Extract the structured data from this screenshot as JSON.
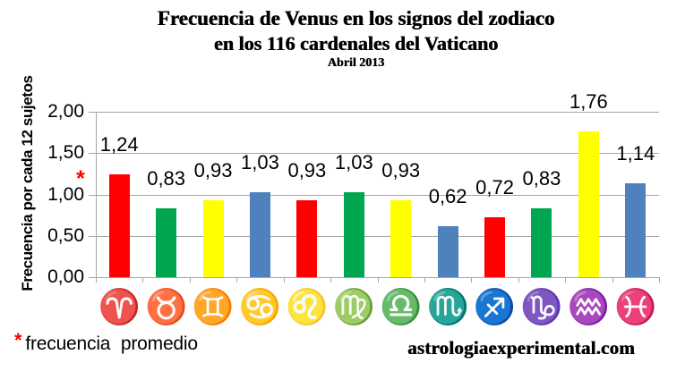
{
  "header": {
    "title_line1": "Frecuencia de Venus en los signos del zodiaco",
    "title_line2": "en los 116 cardenales del Vaticano",
    "subtitle": "Abril 2013"
  },
  "chart_data": {
    "type": "bar",
    "title": "Frecuencia de Venus en los signos del zodiaco en los 116 cardenales del Vaticano - Abril 2013",
    "ylabel": "Frecuencia por cada 12 sujetos",
    "xlabel": "",
    "ylim": [
      0,
      2
    ],
    "ytick_step": 0.5,
    "ytick_labels": [
      "0,00",
      "0,50",
      "1,00",
      "1,50",
      "2,00"
    ],
    "grid": true,
    "legend": false,
    "categories": [
      "Aries",
      "Tauro",
      "Géminis",
      "Cáncer",
      "Leo",
      "Virgo",
      "Libra",
      "Escorpio",
      "Sagitario",
      "Capricornio",
      "Acuario",
      "Piscis"
    ],
    "category_slugs": [
      "aries",
      "tauro",
      "geminis",
      "cancer",
      "leo",
      "virgo",
      "libra",
      "escorpio",
      "sagitario",
      "capricornio",
      "acuario",
      "piscis"
    ],
    "category_symbols": [
      "♈",
      "♉",
      "♊",
      "♋",
      "♌",
      "♍",
      "♎",
      "♏",
      "♐",
      "♑",
      "♒",
      "♓"
    ],
    "symbol_colors": [
      "#ed1c24",
      "#00a651",
      "#0e6fc1",
      "#0e6fc1",
      "#ed1c24",
      "#00a651",
      "#c99700",
      "#0e6fc1",
      "#ed1c24",
      "#00a651",
      "#c99700",
      "#0e6fc1"
    ],
    "bar_colors": [
      "#ff0000",
      "#00a650",
      "#ffff00",
      "#4f81bd",
      "#ff0000",
      "#00a650",
      "#ffff00",
      "#4f81bd",
      "#ff0000",
      "#00a650",
      "#ffff00",
      "#4f81bd"
    ],
    "values": [
      1.24,
      0.83,
      0.93,
      1.03,
      0.93,
      1.03,
      0.93,
      0.62,
      0.72,
      0.83,
      1.76,
      1.14
    ],
    "value_labels": [
      "1,24",
      "0,83",
      "0,93",
      "1,03",
      "0,93",
      "1,03",
      "0,93",
      "0,62",
      "0,72",
      "0,83",
      "1,76",
      "1,14"
    ],
    "average_marker": {
      "glyph": "*",
      "color": "#ff0000",
      "value": 1.0
    }
  },
  "footer": {
    "note_marker": "*",
    "note_marker_color": "#ff0000",
    "note_text": "frecuencia promedio",
    "website": "astrologiaexperimental.com"
  },
  "colors": {
    "grid": "#a6a6a6",
    "axis": "#a6a6a6",
    "text": "#000000",
    "background": "#ffffff"
  }
}
